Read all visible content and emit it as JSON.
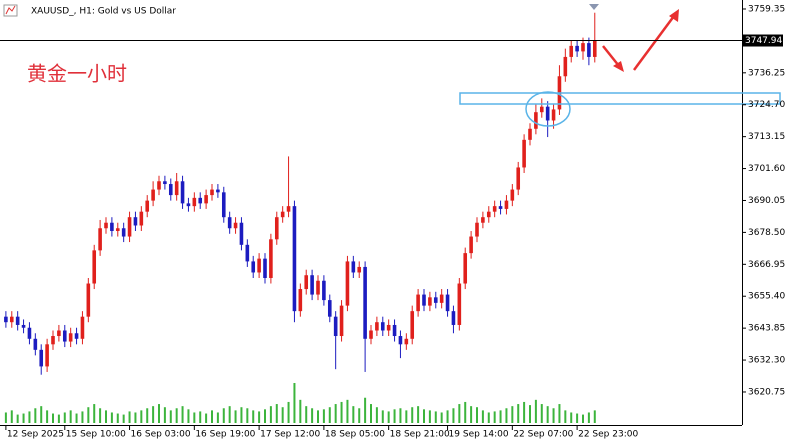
{
  "chart_data": {
    "type": "candlestick",
    "title": "XAUUSD_, H1: Gold vs US Dollar",
    "annotation": "黄金一小时",
    "last_price": 3747.94,
    "up_color": "#e0201c",
    "down_color": "#1c1cc0",
    "volume_color": "#3cb43c",
    "open": [
      3648,
      3646,
      3648,
      3645,
      3644,
      3640,
      3636,
      3630,
      3638,
      3641,
      3643,
      3639,
      3642,
      3640,
      3648,
      3660,
      3672,
      3680,
      3682,
      3679,
      3680,
      3677,
      3684,
      3681,
      3686,
      3690,
      3694,
      3697,
      3696,
      3692,
      3697,
      3689,
      3688,
      3691,
      3689,
      3692,
      3694,
      3693,
      3684,
      3680,
      3682,
      3674,
      3668,
      3664,
      3669,
      3662,
      3676,
      3684,
      3686,
      3688,
      3650,
      3658,
      3663,
      3656,
      3661,
      3654,
      3648,
      3641,
      3652,
      3668,
      3664,
      3666,
      3640,
      3643,
      3646,
      3643,
      3645,
      3641,
      3638,
      3640,
      3650,
      3656,
      3652,
      3655,
      3653,
      3656,
      3650,
      3645,
      3660,
      3671,
      3677,
      3682,
      3684,
      3686,
      3688,
      3687,
      3690,
      3694,
      3702,
      3712,
      3716,
      3722,
      3724,
      3719,
      3723,
      3735,
      3742,
      3746,
      3744,
      3747,
      3742
    ],
    "high": [
      3650,
      3650,
      3650,
      3647,
      3646,
      3642,
      3638,
      3640,
      3643,
      3645,
      3645,
      3644,
      3644,
      3650,
      3662,
      3674,
      3683,
      3684,
      3684,
      3682,
      3682,
      3686,
      3686,
      3688,
      3692,
      3697,
      3699,
      3699,
      3698,
      3700,
      3699,
      3691,
      3693,
      3693,
      3694,
      3696,
      3696,
      3695,
      3686,
      3684,
      3684,
      3676,
      3670,
      3671,
      3671,
      3678,
      3686,
      3688,
      3706,
      3690,
      3660,
      3665,
      3665,
      3663,
      3663,
      3656,
      3650,
      3654,
      3670,
      3670,
      3668,
      3668,
      3645,
      3648,
      3648,
      3647,
      3647,
      3643,
      3642,
      3652,
      3658,
      3658,
      3657,
      3657,
      3658,
      3658,
      3652,
      3662,
      3673,
      3679,
      3684,
      3686,
      3688,
      3690,
      3690,
      3692,
      3696,
      3704,
      3714,
      3718,
      3725,
      3727,
      3726,
      3725,
      3739,
      3745,
      3748,
      3748,
      3749,
      3749,
      3758
    ],
    "low": [
      3644,
      3644,
      3643,
      3642,
      3638,
      3634,
      3627,
      3628,
      3636,
      3639,
      3637,
      3637,
      3638,
      3638,
      3646,
      3658,
      3670,
      3678,
      3677,
      3677,
      3675,
      3675,
      3679,
      3679,
      3684,
      3688,
      3692,
      3694,
      3690,
      3690,
      3687,
      3686,
      3686,
      3687,
      3687,
      3690,
      3691,
      3682,
      3678,
      3678,
      3672,
      3666,
      3662,
      3662,
      3660,
      3660,
      3674,
      3682,
      3684,
      3646,
      3648,
      3656,
      3654,
      3654,
      3652,
      3646,
      3629,
      3639,
      3650,
      3662,
      3662,
      3628,
      3638,
      3641,
      3641,
      3641,
      3639,
      3633,
      3636,
      3638,
      3648,
      3650,
      3650,
      3651,
      3651,
      3648,
      3642,
      3643,
      3658,
      3669,
      3675,
      3680,
      3682,
      3684,
      3685,
      3685,
      3688,
      3692,
      3700,
      3710,
      3714,
      3720,
      3713,
      3716,
      3721,
      3733,
      3740,
      3742,
      3741,
      3739,
      3740
    ],
    "close": [
      3646,
      3648,
      3645,
      3644,
      3640,
      3636,
      3630,
      3638,
      3641,
      3643,
      3639,
      3642,
      3640,
      3648,
      3660,
      3672,
      3680,
      3682,
      3679,
      3680,
      3677,
      3684,
      3681,
      3686,
      3690,
      3694,
      3697,
      3696,
      3692,
      3697,
      3689,
      3688,
      3691,
      3689,
      3692,
      3694,
      3693,
      3684,
      3680,
      3682,
      3674,
      3668,
      3664,
      3669,
      3662,
      3676,
      3684,
      3686,
      3688,
      3650,
      3658,
      3663,
      3656,
      3661,
      3654,
      3648,
      3641,
      3652,
      3668,
      3664,
      3666,
      3640,
      3643,
      3646,
      3643,
      3645,
      3641,
      3638,
      3640,
      3650,
      3656,
      3652,
      3655,
      3653,
      3656,
      3650,
      3645,
      3660,
      3671,
      3677,
      3682,
      3684,
      3686,
      3688,
      3687,
      3690,
      3694,
      3702,
      3712,
      3716,
      3722,
      3724,
      3719,
      3723,
      3735,
      3742,
      3746,
      3744,
      3747,
      3742,
      3748
    ],
    "volume": [
      10,
      12,
      8,
      9,
      11,
      14,
      16,
      12,
      9,
      8,
      10,
      12,
      9,
      11,
      15,
      18,
      14,
      12,
      10,
      9,
      8,
      11,
      10,
      12,
      14,
      16,
      18,
      15,
      12,
      14,
      16,
      13,
      10,
      11,
      9,
      12,
      10,
      14,
      16,
      12,
      15,
      14,
      12,
      11,
      13,
      16,
      18,
      15,
      20,
      38,
      22,
      16,
      14,
      12,
      13,
      15,
      18,
      20,
      22,
      16,
      14,
      24,
      18,
      15,
      12,
      11,
      13,
      14,
      12,
      15,
      16,
      13,
      12,
      11,
      10,
      12,
      14,
      18,
      20,
      16,
      15,
      12,
      10,
      11,
      12,
      14,
      16,
      18,
      20,
      17,
      22,
      18,
      16,
      14,
      18,
      12,
      10,
      9,
      8,
      10,
      12
    ],
    "xlim": [
      -1,
      125
    ],
    "xticks": [
      {
        "value": 0,
        "label": "12 Sep 2025"
      },
      {
        "value": 10,
        "label": "15 Sep 10:00"
      },
      {
        "value": 21,
        "label": "16 Sep 03:00"
      },
      {
        "value": 32,
        "label": "16 Sep 19:00"
      },
      {
        "value": 43,
        "label": "17 Sep 12:00"
      },
      {
        "value": 54,
        "label": "18 Sep 05:00"
      },
      {
        "value": 65,
        "label": "18 Sep 21:00"
      },
      {
        "value": 75,
        "label": "19 Sep 14:00"
      },
      {
        "value": 86,
        "label": "22 Sep 07:00"
      },
      {
        "value": 97,
        "label": "22 Sep 23:00"
      }
    ],
    "ylim": [
      3608.8,
      3762.6
    ],
    "yticks": [
      3759.35,
      3736.25,
      {
        "value": 3724.7,
        "label": "3724.70"
      },
      3713.15,
      {
        "value": 3701.6,
        "label": "3701.60"
      },
      3690.05,
      {
        "value": 3678.5,
        "label": "3678.50"
      },
      3666.95,
      {
        "value": 3655.4,
        "label": "3655.40"
      },
      3643.85,
      {
        "value": 3632.3,
        "label": "3632.30"
      },
      3620.75
    ]
  }
}
